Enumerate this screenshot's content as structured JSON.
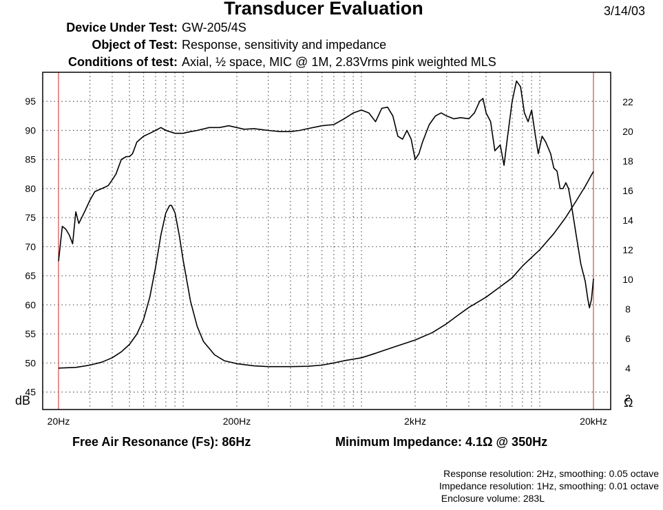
{
  "header": {
    "title": "Transducer Evaluation",
    "date": "3/14/03",
    "rows": [
      {
        "label": "Device Under Test:",
        "value": "GW-205/4S"
      },
      {
        "label": "Object of Test:",
        "value": "Response, sensitivity and impedance"
      },
      {
        "label": "Conditions of test:",
        "value": "Axial, ½ space, MIC @ 1M, 2.83Vrms pink weighted MLS"
      }
    ]
  },
  "footer": {
    "fs_label": "Free Air Resonance (Fs):",
    "fs_value": "86Hz",
    "zmin_label": "Minimum Impedance:",
    "zmin_value": "4.1Ω @ 350Hz",
    "notes": [
      "Response resolution: 2Hz, smoothing: 0.05 octave",
      "Impedance resolution: 1Hz, smoothing: 0.01 octave",
      "Enclosure volume: 283L"
    ]
  },
  "colors": {
    "curve": "#000000",
    "grid": "#555555",
    "marker": "#cc2222"
  },
  "chart_data": {
    "type": "line",
    "x_scale": "log",
    "xlim": [
      20,
      20000
    ],
    "x_ticks": [
      {
        "v": 20,
        "label": "20Hz"
      },
      {
        "v": 200,
        "label": "200Hz"
      },
      {
        "v": 2000,
        "label": "2kHz"
      },
      {
        "v": 20000,
        "label": "20kHz"
      }
    ],
    "ylabel": "dB",
    "ylim": [
      42,
      100
    ],
    "y_ticks": [
      45,
      50,
      55,
      60,
      65,
      70,
      75,
      80,
      85,
      90,
      95
    ],
    "y2label": "Ω",
    "y2lim": [
      1.2,
      24
    ],
    "y2_ticks": [
      2,
      4,
      6,
      8,
      10,
      12,
      14,
      16,
      18,
      20,
      22
    ],
    "grid": true,
    "markers_x": [
      20,
      20000
    ],
    "series": [
      {
        "axis": "left",
        "points": [
          [
            20,
            67.5
          ],
          [
            21,
            73.5
          ],
          [
            22,
            73
          ],
          [
            23,
            72
          ],
          [
            24,
            70.5
          ],
          [
            25,
            76
          ],
          [
            26,
            74
          ],
          [
            28,
            76
          ],
          [
            30,
            78
          ],
          [
            32,
            79.5
          ],
          [
            35,
            80
          ],
          [
            38,
            80.5
          ],
          [
            40,
            81.5
          ],
          [
            42,
            82.5
          ],
          [
            45,
            85
          ],
          [
            48,
            85.5
          ],
          [
            50,
            85.5
          ],
          [
            52,
            86
          ],
          [
            55,
            88
          ],
          [
            60,
            89
          ],
          [
            65,
            89.5
          ],
          [
            70,
            90
          ],
          [
            75,
            90.5
          ],
          [
            80,
            90
          ],
          [
            90,
            89.5
          ],
          [
            100,
            89.5
          ],
          [
            110,
            89.8
          ],
          [
            120,
            90
          ],
          [
            140,
            90.5
          ],
          [
            160,
            90.5
          ],
          [
            180,
            90.8
          ],
          [
            200,
            90.5
          ],
          [
            220,
            90.2
          ],
          [
            250,
            90.3
          ],
          [
            300,
            90
          ],
          [
            350,
            89.8
          ],
          [
            400,
            89.8
          ],
          [
            450,
            90
          ],
          [
            500,
            90.3
          ],
          [
            600,
            90.8
          ],
          [
            700,
            91
          ],
          [
            800,
            92
          ],
          [
            900,
            93
          ],
          [
            1000,
            93.5
          ],
          [
            1100,
            93
          ],
          [
            1200,
            91.5
          ],
          [
            1300,
            93.8
          ],
          [
            1400,
            94
          ],
          [
            1500,
            92.5
          ],
          [
            1600,
            89
          ],
          [
            1700,
            88.5
          ],
          [
            1800,
            90
          ],
          [
            1900,
            88.5
          ],
          [
            2000,
            85
          ],
          [
            2100,
            86
          ],
          [
            2200,
            88
          ],
          [
            2400,
            91
          ],
          [
            2600,
            92.5
          ],
          [
            2800,
            93
          ],
          [
            3000,
            92.5
          ],
          [
            3300,
            92
          ],
          [
            3600,
            92.2
          ],
          [
            4000,
            92
          ],
          [
            4300,
            93
          ],
          [
            4600,
            95
          ],
          [
            4800,
            95.5
          ],
          [
            5000,
            93
          ],
          [
            5300,
            91.5
          ],
          [
            5600,
            86.5
          ],
          [
            6000,
            87.5
          ],
          [
            6300,
            84
          ],
          [
            6600,
            89
          ],
          [
            7000,
            95
          ],
          [
            7400,
            98.5
          ],
          [
            7800,
            97.5
          ],
          [
            8200,
            93
          ],
          [
            8600,
            91.5
          ],
          [
            9000,
            93.5
          ],
          [
            9400,
            89.5
          ],
          [
            9800,
            86
          ],
          [
            10300,
            89
          ],
          [
            10800,
            88
          ],
          [
            11500,
            86
          ],
          [
            12000,
            83.5
          ],
          [
            12500,
            83
          ],
          [
            13000,
            80
          ],
          [
            13500,
            80
          ],
          [
            14000,
            81
          ],
          [
            14500,
            80
          ],
          [
            15000,
            77.5
          ],
          [
            16000,
            72
          ],
          [
            17000,
            67
          ],
          [
            18000,
            64
          ],
          [
            18600,
            61
          ],
          [
            19000,
            59.5
          ],
          [
            19500,
            61
          ],
          [
            20000,
            64.5
          ]
        ]
      },
      {
        "axis": "right",
        "points": [
          [
            20,
            4
          ],
          [
            25,
            4.05
          ],
          [
            30,
            4.2
          ],
          [
            35,
            4.4
          ],
          [
            40,
            4.7
          ],
          [
            45,
            5.1
          ],
          [
            50,
            5.6
          ],
          [
            55,
            6.3
          ],
          [
            60,
            7.3
          ],
          [
            65,
            8.8
          ],
          [
            70,
            10.8
          ],
          [
            75,
            13
          ],
          [
            80,
            14.5
          ],
          [
            84,
            15
          ],
          [
            86,
            15
          ],
          [
            90,
            14.5
          ],
          [
            95,
            13
          ],
          [
            100,
            11.3
          ],
          [
            110,
            8.5
          ],
          [
            120,
            6.8
          ],
          [
            130,
            5.8
          ],
          [
            150,
            4.9
          ],
          [
            170,
            4.5
          ],
          [
            200,
            4.3
          ],
          [
            250,
            4.15
          ],
          [
            300,
            4.1
          ],
          [
            350,
            4.1
          ],
          [
            400,
            4.1
          ],
          [
            500,
            4.12
          ],
          [
            600,
            4.2
          ],
          [
            700,
            4.35
          ],
          [
            800,
            4.5
          ],
          [
            1000,
            4.7
          ],
          [
            1200,
            5
          ],
          [
            1500,
            5.4
          ],
          [
            2000,
            5.9
          ],
          [
            2500,
            6.4
          ],
          [
            3000,
            7
          ],
          [
            3500,
            7.6
          ],
          [
            4000,
            8.1
          ],
          [
            5000,
            8.8
          ],
          [
            6000,
            9.5
          ],
          [
            7000,
            10.1
          ],
          [
            8000,
            10.9
          ],
          [
            10000,
            12
          ],
          [
            12000,
            13.1
          ],
          [
            14000,
            14.2
          ],
          [
            16000,
            15.3
          ],
          [
            18000,
            16.3
          ],
          [
            20000,
            17.3
          ]
        ]
      }
    ]
  }
}
